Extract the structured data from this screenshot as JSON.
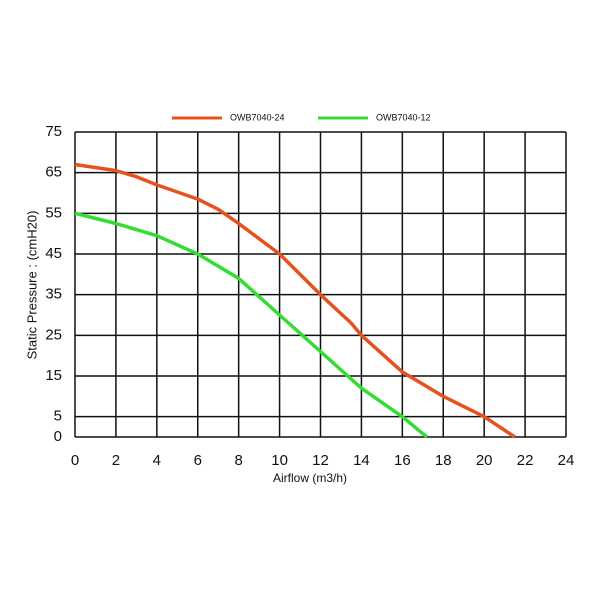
{
  "chart_data": {
    "type": "line",
    "xlabel": "Airflow (m3/h)",
    "ylabel": "Static Pressure : (cmH20)",
    "series": [
      {
        "name": "OWB7040-24",
        "color": "#e8511e",
        "x": [
          0,
          2,
          3,
          4,
          6,
          7,
          8,
          10,
          12,
          13.5,
          14,
          16,
          18,
          20,
          21.5
        ],
        "values": [
          67,
          65.5,
          64,
          62,
          58.5,
          56,
          52.5,
          45,
          35,
          28,
          25,
          16,
          10,
          5,
          0
        ]
      },
      {
        "name": "OWB7040-12",
        "color": "#33dd33",
        "x": [
          0,
          2,
          4,
          6,
          8,
          10,
          12,
          14,
          16,
          17.2
        ],
        "values": [
          55,
          52.5,
          49.5,
          45,
          39,
          30,
          21,
          12,
          5,
          0
        ]
      }
    ],
    "xlim": [
      0,
      24
    ],
    "xticks": [
      0,
      2,
      4,
      6,
      8,
      10,
      12,
      14,
      16,
      18,
      20,
      22,
      24
    ],
    "ylim": [
      0,
      75
    ],
    "yticks": [
      0,
      5,
      15,
      25,
      35,
      45,
      55,
      65,
      75
    ],
    "grid": true,
    "legend": "top"
  }
}
